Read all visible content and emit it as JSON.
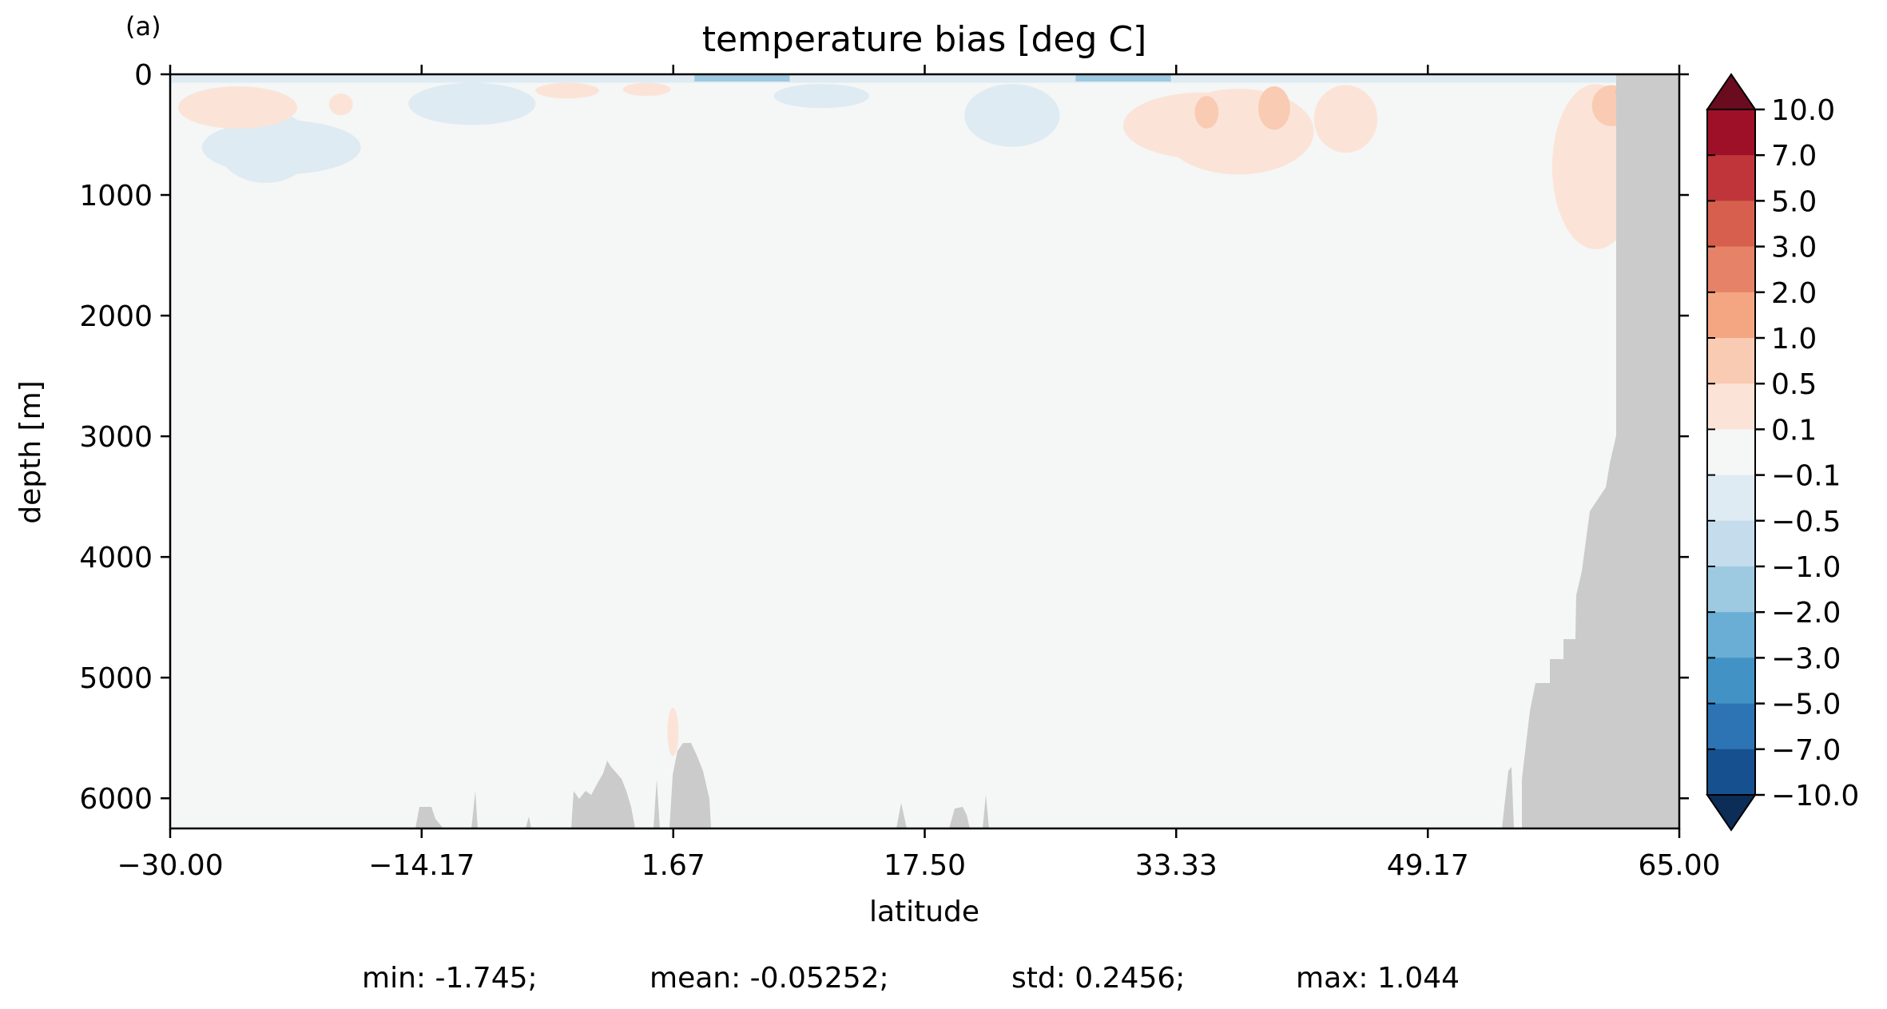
{
  "panel_label": "(a)",
  "chart_data": {
    "type": "heatmap",
    "title": "temperature bias [deg C]",
    "xlabel": "latitude",
    "ylabel": "depth [m]",
    "xlim": [
      -30.0,
      65.0
    ],
    "ylim": [
      6250,
      0
    ],
    "y_inverted": true,
    "grid": false,
    "x_ticks": [
      -30.0,
      -14.17,
      1.67,
      17.5,
      33.33,
      49.17,
      65.0
    ],
    "x_tick_labels": [
      "−30.00",
      "−14.17",
      "1.67",
      "17.50",
      "33.33",
      "49.17",
      "65.00"
    ],
    "y_ticks": [
      0,
      1000,
      2000,
      3000,
      4000,
      5000,
      6000
    ],
    "y_tick_labels": [
      "0",
      "1000",
      "2000",
      "3000",
      "4000",
      "5000",
      "6000"
    ],
    "colorbar": {
      "levels": [
        -10.0,
        -7.0,
        -5.0,
        -3.0,
        -2.0,
        -1.0,
        -0.5,
        -0.1,
        0.1,
        0.5,
        1.0,
        2.0,
        3.0,
        5.0,
        7.0,
        10.0
      ],
      "tick_labels": [
        "10.0",
        "7.0",
        "5.0",
        "3.0",
        "2.0",
        "1.0",
        "0.5",
        "0.1",
        "−0.1",
        "−0.5",
        "−1.0",
        "−2.0",
        "−3.0",
        "−5.0",
        "−7.0",
        "−10.0"
      ],
      "colors_top_to_bottom": [
        "#6b0b20",
        "#9e1027",
        "#c0353a",
        "#d6604d",
        "#e58268",
        "#f4a582",
        "#f9cbb2",
        "#fbe4d7",
        "#f5f6f6",
        "#deebf3",
        "#c4dceb",
        "#9ecae1",
        "#6aaed5",
        "#4392c5",
        "#2d74b4",
        "#16508f",
        "#0b2d57"
      ],
      "extend": "both"
    },
    "positive_regions": [
      {
        "lat": [
          -29.5,
          -22.0
        ],
        "depth": [
          100,
          450
        ],
        "bias": 0.3
      },
      {
        "lat": [
          -20.0,
          -18.5
        ],
        "depth": [
          160,
          340
        ],
        "bias": 0.3
      },
      {
        "lat": [
          -7.0,
          -3.0
        ],
        "depth": [
          70,
          200
        ],
        "bias": 0.3
      },
      {
        "lat": [
          -1.5,
          1.5
        ],
        "depth": [
          70,
          180
        ],
        "bias": 0.3
      },
      {
        "lat": [
          30.0,
          40.0
        ],
        "depth": [
          150,
          700
        ],
        "bias": 0.3
      },
      {
        "lat": [
          32.5,
          42.0
        ],
        "depth": [
          120,
          830
        ],
        "bias": 0.3
      },
      {
        "lat": [
          34.5,
          36.0
        ],
        "depth": [
          180,
          450
        ],
        "bias": 0.7
      },
      {
        "lat": [
          38.5,
          40.5
        ],
        "depth": [
          100,
          460
        ],
        "bias": 0.7
      },
      {
        "lat": [
          42.0,
          46.0
        ],
        "depth": [
          90,
          650
        ],
        "bias": 0.3
      },
      {
        "lat": [
          57.0,
          62.5
        ],
        "depth": [
          80,
          1450
        ],
        "bias": 0.3
      },
      {
        "lat": [
          59.5,
          62.0
        ],
        "depth": [
          90,
          430
        ],
        "bias": 0.7
      },
      {
        "lat": [
          61.0,
          62.2
        ],
        "depth": [
          100,
          200
        ],
        "bias": 1.0
      },
      {
        "lat": [
          1.3,
          2.0
        ],
        "depth": [
          5250,
          5650
        ],
        "bias": 0.3
      }
    ],
    "negative_regions": [
      {
        "lat": [
          -30.0,
          62.0
        ],
        "depth": [
          0,
          70
        ],
        "bias": -0.3
      },
      {
        "lat": [
          -28.0,
          -18.0
        ],
        "depth": [
          380,
          830
        ],
        "bias": -0.3
      },
      {
        "lat": [
          -27.0,
          -21.0
        ],
        "depth": [
          300,
          900
        ],
        "bias": -0.3
      },
      {
        "lat": [
          -15.0,
          -7.0
        ],
        "depth": [
          70,
          420
        ],
        "bias": -0.3
      },
      {
        "lat": [
          20.0,
          26.0
        ],
        "depth": [
          80,
          600
        ],
        "bias": -0.3
      },
      {
        "lat": [
          8.0,
          14.0
        ],
        "depth": [
          80,
          280
        ],
        "bias": -0.3
      },
      {
        "lat": [
          3.0,
          9.0
        ],
        "depth": [
          0,
          60
        ],
        "bias": -1.2
      },
      {
        "lat": [
          27.0,
          33.0
        ],
        "depth": [
          0,
          60
        ],
        "bias": -1.2
      }
    ],
    "stats": {
      "min": -1.745,
      "mean": -0.05252,
      "std": 0.2456,
      "max": 1.044
    },
    "stats_labels": [
      "min: -1.745;",
      "mean: -0.05252;",
      "std: 0.2456;",
      "max: 1.044"
    ]
  }
}
